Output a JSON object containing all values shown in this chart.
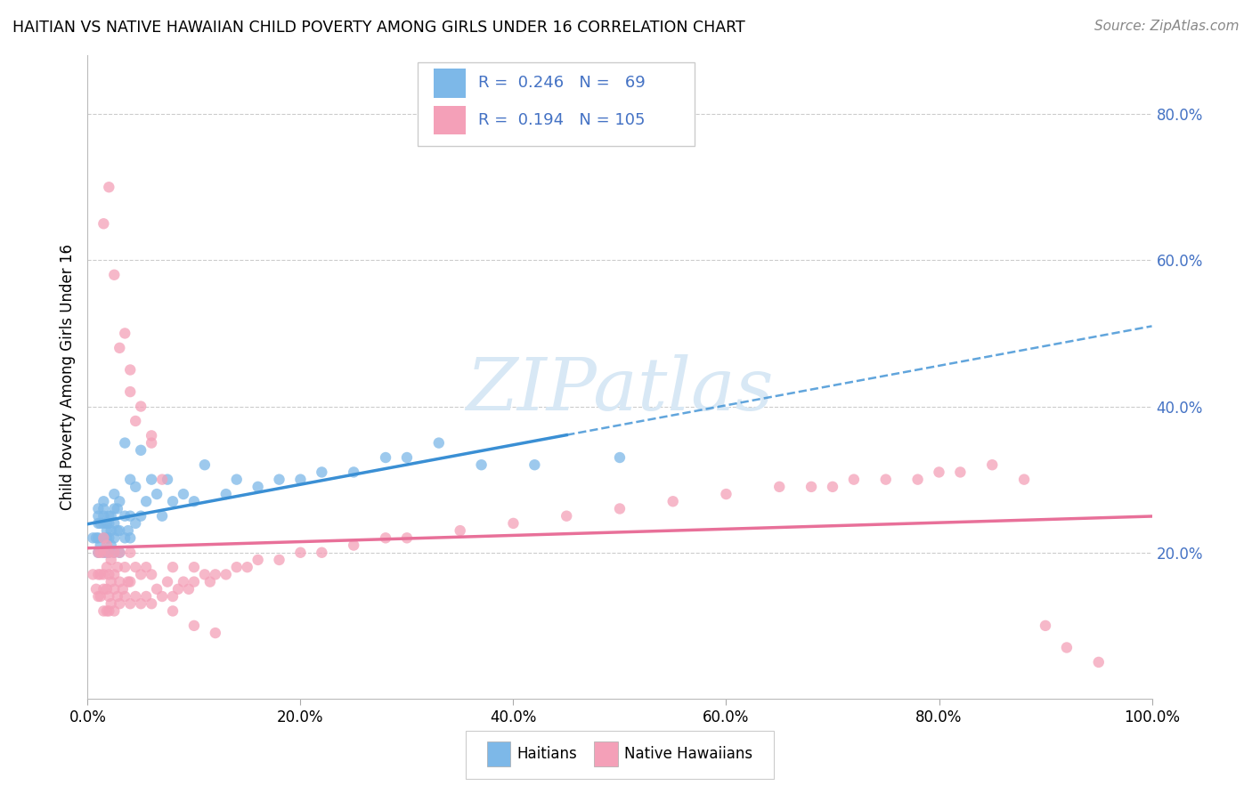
{
  "title": "HAITIAN VS NATIVE HAWAIIAN CHILD POVERTY AMONG GIRLS UNDER 16 CORRELATION CHART",
  "source": "Source: ZipAtlas.com",
  "ylabel": "Child Poverty Among Girls Under 16",
  "xlim": [
    0.0,
    1.0
  ],
  "ylim": [
    0.0,
    0.88
  ],
  "xtick_vals": [
    0.0,
    0.2,
    0.4,
    0.6,
    0.8,
    1.0
  ],
  "xtick_labels": [
    "0.0%",
    "20.0%",
    "40.0%",
    "60.0%",
    "80.0%",
    "100.0%"
  ],
  "ytick_vals": [
    0.2,
    0.4,
    0.6,
    0.8
  ],
  "legend1_R": "0.246",
  "legend1_N": "69",
  "legend2_R": "0.194",
  "legend2_N": "105",
  "haitian_color": "#7db8e8",
  "hawaiian_color": "#f4a0b8",
  "haitian_line_color": "#3a8fd4",
  "hawaiian_line_color": "#e87099",
  "background_color": "#ffffff",
  "grid_color": "#cccccc",
  "blue_text": "#4472c4",
  "watermark_color": "#d8e8f5",
  "haitian_x": [
    0.005,
    0.008,
    0.01,
    0.01,
    0.01,
    0.01,
    0.01,
    0.012,
    0.012,
    0.015,
    0.015,
    0.015,
    0.015,
    0.015,
    0.015,
    0.018,
    0.018,
    0.018,
    0.018,
    0.02,
    0.02,
    0.02,
    0.02,
    0.022,
    0.022,
    0.022,
    0.025,
    0.025,
    0.025,
    0.025,
    0.025,
    0.028,
    0.028,
    0.03,
    0.03,
    0.03,
    0.035,
    0.035,
    0.035,
    0.038,
    0.04,
    0.04,
    0.04,
    0.045,
    0.045,
    0.05,
    0.05,
    0.055,
    0.06,
    0.065,
    0.07,
    0.075,
    0.08,
    0.09,
    0.1,
    0.11,
    0.13,
    0.14,
    0.16,
    0.18,
    0.2,
    0.22,
    0.25,
    0.28,
    0.3,
    0.33,
    0.37,
    0.42,
    0.5
  ],
  "haitian_y": [
    0.22,
    0.22,
    0.2,
    0.22,
    0.24,
    0.25,
    0.26,
    0.21,
    0.24,
    0.2,
    0.22,
    0.24,
    0.25,
    0.26,
    0.27,
    0.2,
    0.22,
    0.23,
    0.24,
    0.2,
    0.22,
    0.24,
    0.25,
    0.21,
    0.23,
    0.25,
    0.2,
    0.22,
    0.24,
    0.26,
    0.28,
    0.23,
    0.26,
    0.2,
    0.23,
    0.27,
    0.22,
    0.25,
    0.35,
    0.23,
    0.22,
    0.25,
    0.3,
    0.24,
    0.29,
    0.25,
    0.34,
    0.27,
    0.3,
    0.28,
    0.25,
    0.3,
    0.27,
    0.28,
    0.27,
    0.32,
    0.28,
    0.3,
    0.29,
    0.3,
    0.3,
    0.31,
    0.31,
    0.33,
    0.33,
    0.35,
    0.32,
    0.32,
    0.33
  ],
  "hawaiian_x": [
    0.005,
    0.008,
    0.01,
    0.01,
    0.01,
    0.012,
    0.012,
    0.012,
    0.015,
    0.015,
    0.015,
    0.015,
    0.015,
    0.018,
    0.018,
    0.018,
    0.018,
    0.02,
    0.02,
    0.02,
    0.02,
    0.022,
    0.022,
    0.022,
    0.025,
    0.025,
    0.025,
    0.025,
    0.028,
    0.028,
    0.03,
    0.03,
    0.03,
    0.033,
    0.035,
    0.035,
    0.038,
    0.04,
    0.04,
    0.04,
    0.045,
    0.045,
    0.05,
    0.05,
    0.055,
    0.055,
    0.06,
    0.06,
    0.065,
    0.07,
    0.075,
    0.08,
    0.08,
    0.085,
    0.09,
    0.095,
    0.1,
    0.1,
    0.11,
    0.115,
    0.12,
    0.13,
    0.14,
    0.15,
    0.16,
    0.18,
    0.2,
    0.22,
    0.25,
    0.28,
    0.3,
    0.35,
    0.4,
    0.45,
    0.5,
    0.55,
    0.6,
    0.65,
    0.68,
    0.7,
    0.72,
    0.75,
    0.78,
    0.8,
    0.82,
    0.85,
    0.88,
    0.9,
    0.92,
    0.95,
    0.015,
    0.02,
    0.025,
    0.03,
    0.035,
    0.04,
    0.04,
    0.045,
    0.05,
    0.06,
    0.06,
    0.07,
    0.08,
    0.1,
    0.12
  ],
  "hawaiian_y": [
    0.17,
    0.15,
    0.14,
    0.17,
    0.2,
    0.14,
    0.17,
    0.2,
    0.12,
    0.15,
    0.17,
    0.2,
    0.22,
    0.12,
    0.15,
    0.18,
    0.21,
    0.12,
    0.14,
    0.17,
    0.2,
    0.13,
    0.16,
    0.19,
    0.12,
    0.15,
    0.17,
    0.2,
    0.14,
    0.18,
    0.13,
    0.16,
    0.2,
    0.15,
    0.14,
    0.18,
    0.16,
    0.13,
    0.16,
    0.2,
    0.14,
    0.18,
    0.13,
    0.17,
    0.14,
    0.18,
    0.13,
    0.17,
    0.15,
    0.14,
    0.16,
    0.14,
    0.18,
    0.15,
    0.16,
    0.15,
    0.16,
    0.18,
    0.17,
    0.16,
    0.17,
    0.17,
    0.18,
    0.18,
    0.19,
    0.19,
    0.2,
    0.2,
    0.21,
    0.22,
    0.22,
    0.23,
    0.24,
    0.25,
    0.26,
    0.27,
    0.28,
    0.29,
    0.29,
    0.29,
    0.3,
    0.3,
    0.3,
    0.31,
    0.31,
    0.32,
    0.3,
    0.1,
    0.07,
    0.05,
    0.65,
    0.7,
    0.58,
    0.48,
    0.5,
    0.42,
    0.45,
    0.38,
    0.4,
    0.35,
    0.36,
    0.3,
    0.12,
    0.1,
    0.09
  ]
}
